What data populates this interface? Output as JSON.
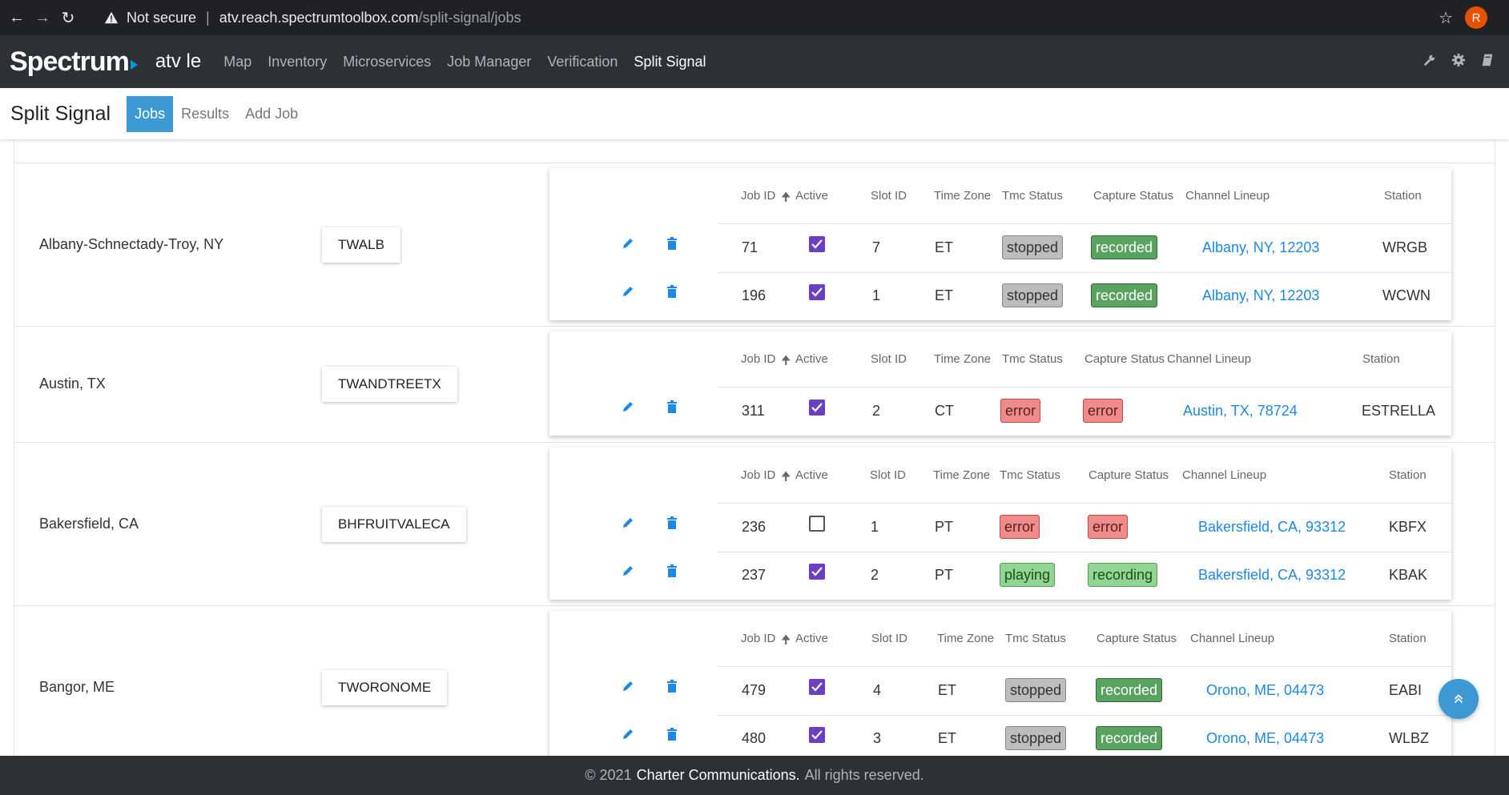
{
  "browser": {
    "not_secure": "Not secure",
    "url_host": "atv.reach.spectrumtoolbox.com",
    "url_path": "/split-signal/jobs",
    "profile_initial": "R"
  },
  "header": {
    "logo": "Spectrum",
    "app_name": "atv le",
    "nav": [
      "Map",
      "Inventory",
      "Microservices",
      "Job Manager",
      "Verification",
      "Split Signal"
    ],
    "active_nav": "Split Signal"
  },
  "subheader": {
    "title": "Split Signal",
    "tabs": [
      "Jobs",
      "Results",
      "Add Job"
    ],
    "active_tab": "Jobs"
  },
  "columns": {
    "job_id": "Job ID",
    "active": "Active",
    "slot_id": "Slot ID",
    "time_zone": "Time Zone",
    "tmc_status": "Tmc Status",
    "capture_status": "Capture Status",
    "channel_lineup": "Channel Lineup",
    "station": "Station"
  },
  "markets": [
    {
      "name": "Albany-Schnectady-Troy, NY",
      "tms": "TWALB",
      "jobs": [
        {
          "job_id": "71",
          "active": true,
          "slot_id": "7",
          "tz": "ET",
          "tmc": "stopped",
          "capture": "recorded",
          "lineup": "Albany, NY, 12203",
          "station": "WRGB"
        },
        {
          "job_id": "196",
          "active": true,
          "slot_id": "1",
          "tz": "ET",
          "tmc": "stopped",
          "capture": "recorded",
          "lineup": "Albany, NY, 12203",
          "station": "WCWN"
        }
      ]
    },
    {
      "name": "Austin, TX",
      "tms": "TWANDTREETX",
      "jobs": [
        {
          "job_id": "311",
          "active": true,
          "slot_id": "2",
          "tz": "CT",
          "tmc": "error",
          "capture": "error",
          "lineup": "Austin, TX, 78724",
          "station": "ESTRELLA"
        }
      ]
    },
    {
      "name": "Bakersfield, CA",
      "tms": "BHFRUITVALECA",
      "jobs": [
        {
          "job_id": "236",
          "active": false,
          "slot_id": "1",
          "tz": "PT",
          "tmc": "error",
          "capture": "error",
          "lineup": "Bakersfield, CA, 93312",
          "station": "KBFX"
        },
        {
          "job_id": "237",
          "active": true,
          "slot_id": "2",
          "tz": "PT",
          "tmc": "playing",
          "capture": "recording",
          "lineup": "Bakersfield, CA, 93312",
          "station": "KBAK"
        }
      ]
    },
    {
      "name": "Bangor, ME",
      "tms": "TWORONOME",
      "jobs": [
        {
          "job_id": "479",
          "active": true,
          "slot_id": "4",
          "tz": "ET",
          "tmc": "stopped",
          "capture": "recorded",
          "lineup": "Orono, ME, 04473",
          "station": "EABI"
        },
        {
          "job_id": "480",
          "active": true,
          "slot_id": "3",
          "tz": "ET",
          "tmc": "stopped",
          "capture": "recorded",
          "lineup": "Orono, ME, 04473",
          "station": "WLBZ"
        }
      ]
    }
  ],
  "footer": {
    "year": "2021",
    "company": "Charter Communications.",
    "rights": "All rights reserved."
  },
  "colors": {
    "accent": "#3d99d4",
    "header_bg": "#2d3035",
    "link": "#1e88e5",
    "checkbox": "#6a3fc1"
  }
}
